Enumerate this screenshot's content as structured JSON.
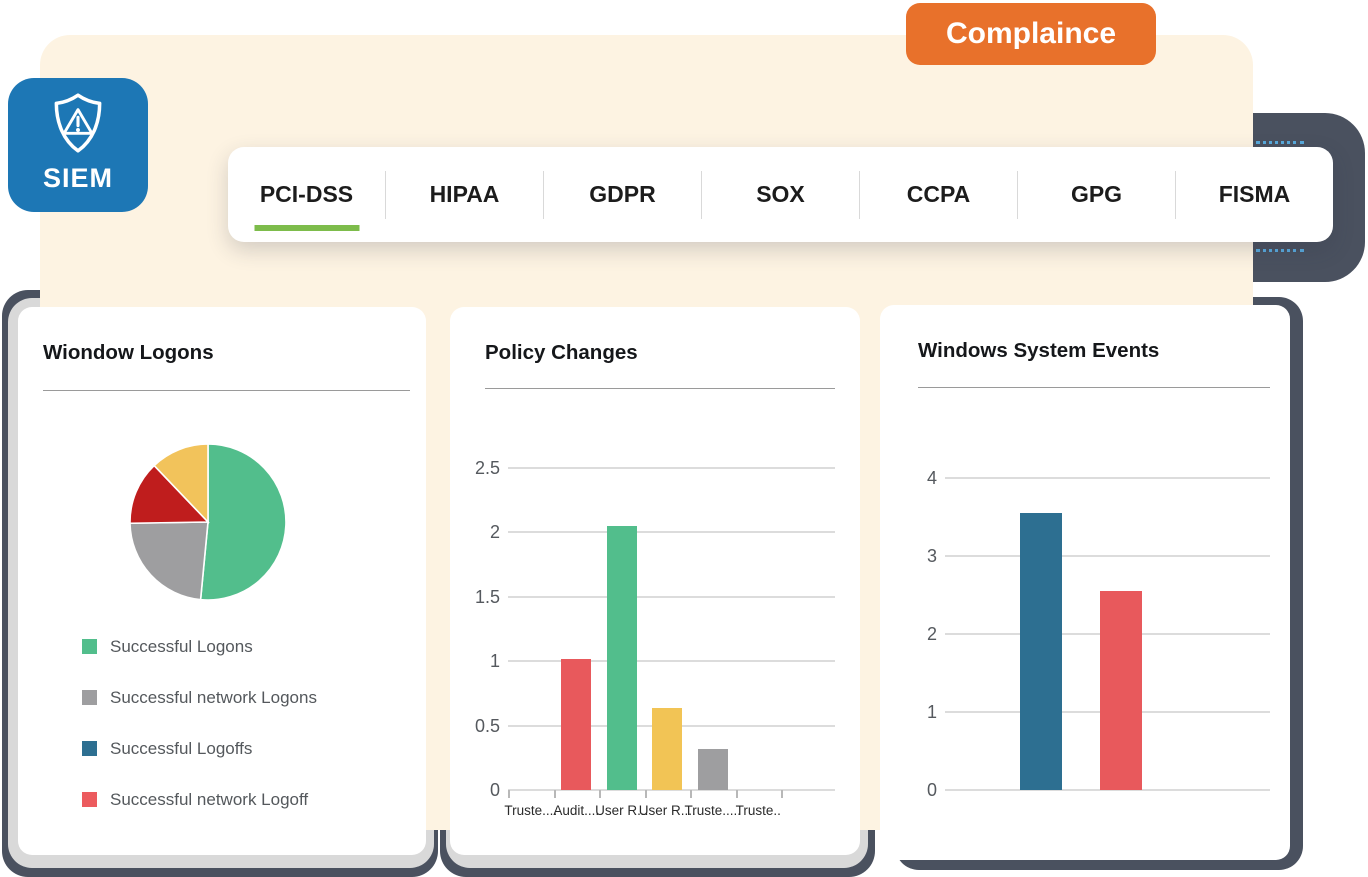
{
  "badge": {
    "label": "Complaince"
  },
  "siem": {
    "label": "SIEM"
  },
  "tabs": {
    "items": [
      "PCI-DSS",
      "HIPAA",
      "GDPR",
      "SOX",
      "CCPA",
      "GPG",
      "FISMA"
    ],
    "active_index": 0,
    "active_underline_color": "#7dbc4b"
  },
  "cards": [
    {
      "title": "Wiondow Logons"
    },
    {
      "title": "Policy Changes"
    },
    {
      "title": "Windows System Events"
    }
  ],
  "colors": {
    "cream_panel": "#fdf3e2",
    "badge_orange": "#e8712b",
    "siem_blue": "#1d77b5",
    "dark_slate": "#4a515f",
    "light_gray_layer": "#d9d9d9",
    "dotted_line_blue": "#58aadd"
  },
  "chart_data": [
    {
      "type": "pie",
      "title": "Wiondow Logons",
      "slices": [
        {
          "value": 51,
          "color": "#52be8c"
        },
        {
          "value": 23,
          "color": "#9e9ea0"
        },
        {
          "value": 13,
          "color": "#bf1d1d"
        },
        {
          "value": 12,
          "color": "#f2c35b"
        }
      ],
      "legend_position": "bottom-left",
      "legend": [
        {
          "label": "Successful Logons",
          "color": "#52be8c"
        },
        {
          "label": "Successful network Logons",
          "color": "#9e9ea0"
        },
        {
          "label": "Successful Logoffs",
          "color": "#2d6f91"
        },
        {
          "label": "Successful network Logoff",
          "color": "#ec5b5e"
        }
      ]
    },
    {
      "type": "bar",
      "title": "Policy Changes",
      "categories": [
        "Truste....",
        "Audit....",
        "User R...",
        "User R....",
        "Truste.....",
        "Truste.."
      ],
      "values": [
        0,
        1.02,
        2.05,
        0.64,
        0.32,
        0
      ],
      "colors": [
        "",
        "#e8595c",
        "#52be8c",
        "#f2c455",
        "#9e9ea0",
        ""
      ],
      "yticks": [
        0,
        0.5,
        1,
        1.5,
        2,
        2.5
      ],
      "ylim": [
        0,
        2.5
      ],
      "grid": true,
      "xlabel": "",
      "ylabel": ""
    },
    {
      "type": "bar",
      "title": "Windows System Events",
      "categories": [
        "",
        ""
      ],
      "values": [
        3.55,
        2.55
      ],
      "colors": [
        "#2d6f91",
        "#e8595c"
      ],
      "yticks": [
        0,
        1,
        2,
        3,
        4
      ],
      "ylim": [
        0,
        4
      ],
      "grid": true,
      "xlabel": "",
      "ylabel": ""
    }
  ]
}
